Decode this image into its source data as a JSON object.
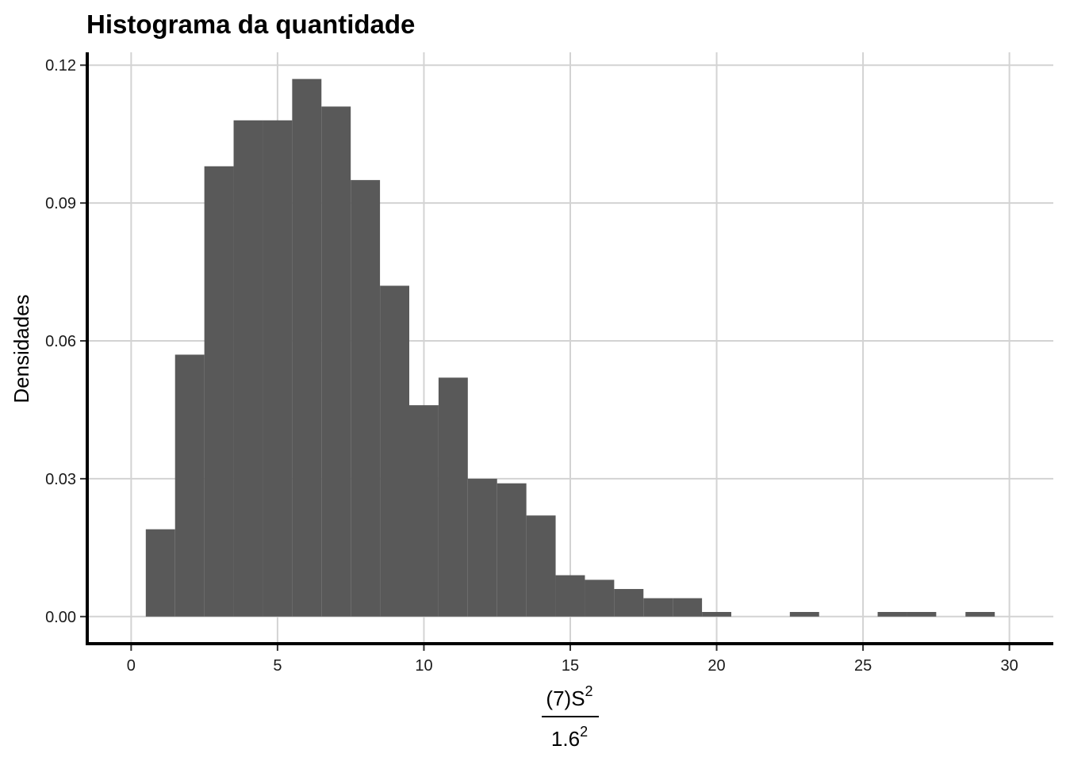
{
  "chart_data": {
    "type": "bar",
    "title": "Histograma da quantidade",
    "ylabel": "Densidades",
    "xlabel": {
      "numerator": "(7)S",
      "numerator_sup": "2",
      "denominator": "1.6",
      "denominator_sup": "2"
    },
    "bin_width": 1,
    "bins": [
      {
        "x": 1,
        "density": 0.019
      },
      {
        "x": 2,
        "density": 0.057
      },
      {
        "x": 3,
        "density": 0.098
      },
      {
        "x": 4,
        "density": 0.108
      },
      {
        "x": 5,
        "density": 0.108
      },
      {
        "x": 6,
        "density": 0.117
      },
      {
        "x": 7,
        "density": 0.111
      },
      {
        "x": 8,
        "density": 0.095
      },
      {
        "x": 9,
        "density": 0.072
      },
      {
        "x": 10,
        "density": 0.046
      },
      {
        "x": 11,
        "density": 0.052
      },
      {
        "x": 12,
        "density": 0.03
      },
      {
        "x": 13,
        "density": 0.029
      },
      {
        "x": 14,
        "density": 0.022
      },
      {
        "x": 15,
        "density": 0.009
      },
      {
        "x": 16,
        "density": 0.008
      },
      {
        "x": 17,
        "density": 0.006
      },
      {
        "x": 18,
        "density": 0.004
      },
      {
        "x": 19,
        "density": 0.004
      },
      {
        "x": 20,
        "density": 0.001
      },
      {
        "x": 23,
        "density": 0.001
      },
      {
        "x": 26,
        "density": 0.001
      },
      {
        "x": 27,
        "density": 0.001
      },
      {
        "x": 29,
        "density": 0.001
      }
    ],
    "xlim": [
      -1.5,
      31.5
    ],
    "ylim": [
      -0.0059,
      0.1228
    ],
    "x_ticks": [
      0,
      5,
      10,
      15,
      20,
      25,
      30
    ],
    "x_tick_labels": [
      "0",
      "5",
      "10",
      "15",
      "20",
      "25",
      "30"
    ],
    "y_ticks": [
      0,
      0.03,
      0.06,
      0.09,
      0.12
    ],
    "y_tick_labels": [
      "0.00",
      "0.03",
      "0.06",
      "0.09",
      "0.12"
    ],
    "bar_color": "#595959",
    "grid_color": "#d3d3d3",
    "grid": true,
    "legend": "none"
  }
}
